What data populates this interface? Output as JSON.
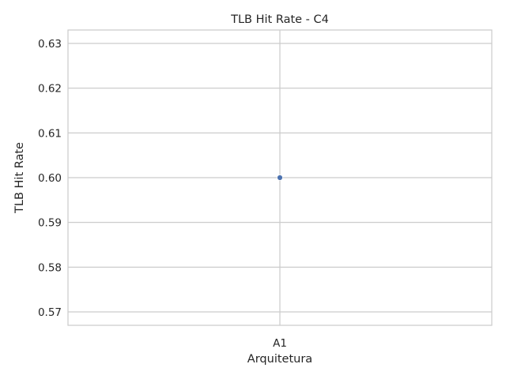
{
  "chart_data": {
    "type": "scatter",
    "title": "TLB Hit Rate - C4",
    "xlabel": "Arquitetura",
    "ylabel": "TLB Hit Rate",
    "categories": [
      "A1"
    ],
    "series": [
      {
        "values": [
          0.6
        ]
      }
    ],
    "ylim": [
      0.567,
      0.633
    ],
    "yticks": [
      "0.57",
      "0.58",
      "0.59",
      "0.60",
      "0.61",
      "0.62",
      "0.63"
    ],
    "grid": true,
    "colors": {
      "point": "#4c72b0",
      "grid": "#cccccc",
      "spine": "#cccccc"
    }
  }
}
